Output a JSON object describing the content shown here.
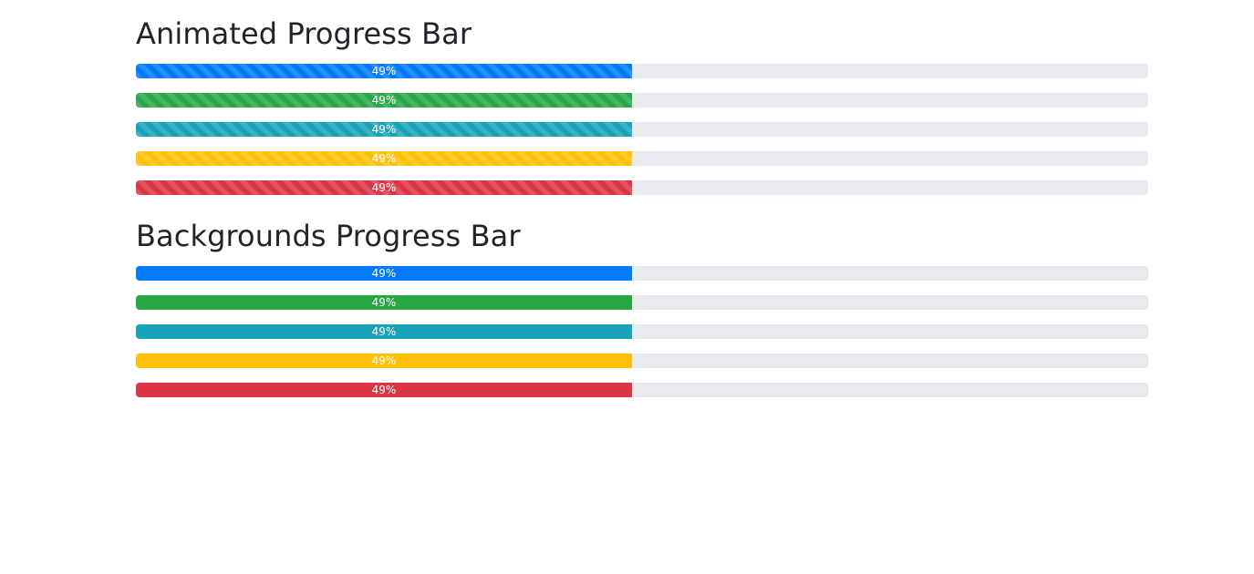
{
  "sections": [
    {
      "title": "Animated Progress Bar",
      "striped": true,
      "bars": [
        {
          "label": "49%",
          "value": 0.49,
          "color": "#007bff"
        },
        {
          "label": "49%",
          "value": 0.49,
          "color": "#28a745"
        },
        {
          "label": "49%",
          "value": 0.49,
          "color": "#17a2b8"
        },
        {
          "label": "49%",
          "value": 0.49,
          "color": "#ffc107"
        },
        {
          "label": "49%",
          "value": 0.49,
          "color": "#dc3545"
        }
      ]
    },
    {
      "title": "Backgrounds Progress Bar",
      "striped": false,
      "bars": [
        {
          "label": "49%",
          "value": 0.49,
          "color": "#007bff"
        },
        {
          "label": "49%",
          "value": 0.49,
          "color": "#28a745"
        },
        {
          "label": "49%",
          "value": 0.49,
          "color": "#17a2b8"
        },
        {
          "label": "49%",
          "value": 0.49,
          "color": "#ffc107"
        },
        {
          "label": "49%",
          "value": 0.49,
          "color": "#dc3545"
        }
      ]
    }
  ],
  "track_color": "#e9ecef"
}
